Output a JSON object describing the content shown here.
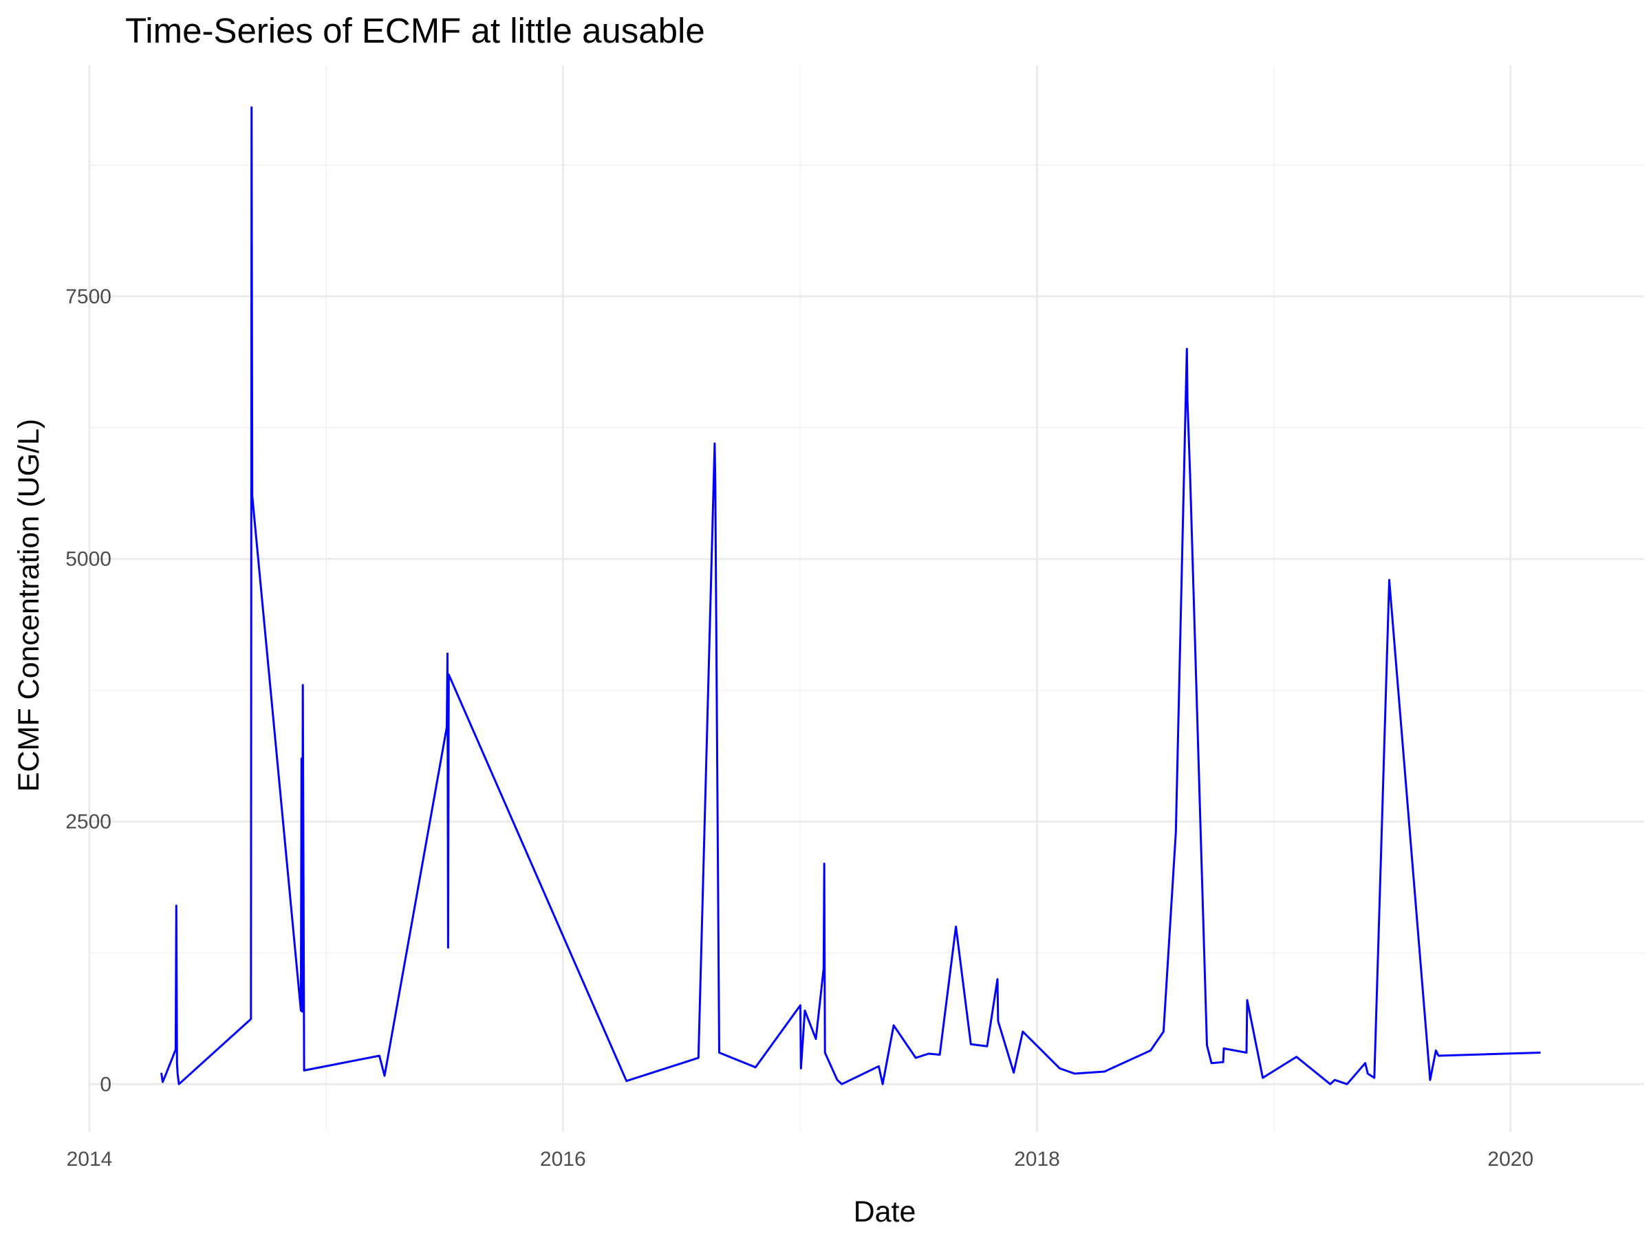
{
  "colors": {
    "series": "#0000ff",
    "grid": "#ebebeb",
    "background": "#ffffff",
    "tick_text": "#4d4d4d"
  },
  "chart_data": {
    "type": "line",
    "title": "Time-Series of ECMF at little ausable",
    "xlabel": "Date",
    "ylabel": "ECMF Concentration (UG/L)",
    "x_scale": "date",
    "xlim": [
      "2014-01-01",
      "2020-07-25"
    ],
    "ylim": [
      -450,
      9700
    ],
    "x_ticks": [
      "2014",
      "2016",
      "2018",
      "2020"
    ],
    "y_ticks": [
      "0",
      "2500",
      "5000",
      "7500"
    ],
    "grid": true,
    "legend": "none",
    "series": [
      {
        "color": "#0000ff",
        "points": [
          [
            "2014-04-22",
            100
          ],
          [
            "2014-04-24",
            20
          ],
          [
            "2014-04-28",
            80
          ],
          [
            "2014-05-14",
            330
          ],
          [
            "2014-05-15",
            1700
          ],
          [
            "2014-05-16",
            200
          ],
          [
            "2014-05-17",
            100
          ],
          [
            "2014-05-19",
            0
          ],
          [
            "2014-09-07",
            620
          ],
          [
            "2014-09-08",
            9300
          ],
          [
            "2014-09-09",
            5600
          ],
          [
            "2014-11-23",
            700
          ],
          [
            "2014-11-24",
            3100
          ],
          [
            "2014-11-25",
            690
          ],
          [
            "2014-11-26",
            3800
          ],
          [
            "2014-11-28",
            130
          ],
          [
            "2015-03-24",
            270
          ],
          [
            "2015-04-01",
            80
          ],
          [
            "2015-07-06",
            3400
          ],
          [
            "2015-07-07",
            4100
          ],
          [
            "2015-07-08",
            1300
          ],
          [
            "2015-07-09",
            3900
          ],
          [
            "2016-04-08",
            30
          ],
          [
            "2016-07-28",
            250
          ],
          [
            "2016-08-22",
            6100
          ],
          [
            "2016-08-23",
            5700
          ],
          [
            "2016-08-29",
            300
          ],
          [
            "2016-10-24",
            160
          ],
          [
            "2017-01-01",
            750
          ],
          [
            "2017-01-02",
            150
          ],
          [
            "2017-01-08",
            700
          ],
          [
            "2017-01-25",
            430
          ],
          [
            "2017-02-06",
            1100
          ],
          [
            "2017-02-07",
            2100
          ],
          [
            "2017-02-08",
            300
          ],
          [
            "2017-02-27",
            40
          ],
          [
            "2017-03-06",
            0
          ],
          [
            "2017-05-02",
            170
          ],
          [
            "2017-05-08",
            0
          ],
          [
            "2017-05-25",
            560
          ],
          [
            "2017-06-28",
            250
          ],
          [
            "2017-07-18",
            290
          ],
          [
            "2017-08-04",
            280
          ],
          [
            "2017-08-29",
            1500
          ],
          [
            "2017-09-21",
            380
          ],
          [
            "2017-10-16",
            360
          ],
          [
            "2017-11-01",
            1000
          ],
          [
            "2017-11-02",
            600
          ],
          [
            "2017-11-26",
            110
          ],
          [
            "2017-12-10",
            500
          ],
          [
            "2018-02-05",
            150
          ],
          [
            "2018-02-28",
            100
          ],
          [
            "2018-04-15",
            120
          ],
          [
            "2018-06-25",
            320
          ],
          [
            "2018-07-15",
            500
          ],
          [
            "2018-08-03",
            2400
          ],
          [
            "2018-08-20",
            7000
          ],
          [
            "2018-08-21",
            6500
          ],
          [
            "2018-08-25",
            5800
          ],
          [
            "2018-09-20",
            370
          ],
          [
            "2018-09-27",
            200
          ],
          [
            "2018-10-15",
            210
          ],
          [
            "2018-10-16",
            340
          ],
          [
            "2018-11-20",
            300
          ],
          [
            "2018-11-21",
            800
          ],
          [
            "2018-12-15",
            60
          ],
          [
            "2019-02-05",
            260
          ],
          [
            "2019-03-29",
            0
          ],
          [
            "2019-04-05",
            40
          ],
          [
            "2019-04-24",
            0
          ],
          [
            "2019-05-22",
            200
          ],
          [
            "2019-05-26",
            100
          ],
          [
            "2019-06-05",
            60
          ],
          [
            "2019-06-28",
            4800
          ],
          [
            "2019-08-30",
            40
          ],
          [
            "2019-09-08",
            320
          ],
          [
            "2019-09-12",
            270
          ],
          [
            "2020-02-15",
            300
          ]
        ]
      }
    ]
  }
}
